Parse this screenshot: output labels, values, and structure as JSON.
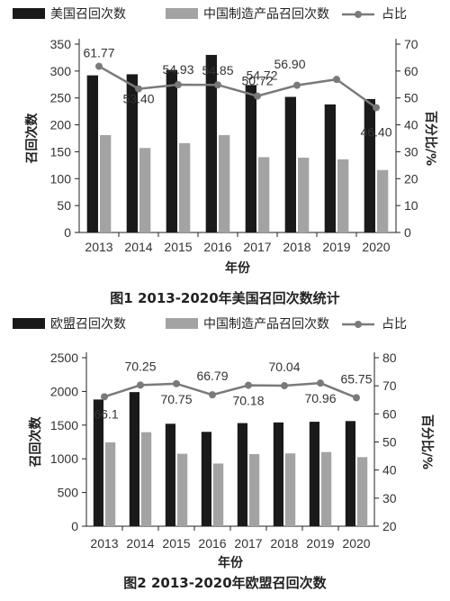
{
  "colors": {
    "bar_us_eu": "#1a1a1a",
    "bar_china": "#a3a3a3",
    "line": "#7a7a7a",
    "axis": "#222222"
  },
  "chart_data": [
    {
      "type": "bar",
      "caption": "图1  2013-2020年美国召回次数统计",
      "categories": [
        "2013",
        "2014",
        "2015",
        "2016",
        "2017",
        "2018",
        "2019",
        "2020"
      ],
      "xlabel": "年份",
      "ylabel": "召回次数",
      "ylim": [
        0,
        350
      ],
      "yticks": [
        "0",
        "50",
        "100",
        "150",
        "200",
        "250",
        "300",
        "350"
      ],
      "y2label": "百分比/%",
      "y2lim": [
        0,
        70
      ],
      "y2ticks": [
        "0",
        "10",
        "20",
        "30",
        "40",
        "50",
        "60",
        "70"
      ],
      "legend": [
        "美国召回次数",
        "中国制造产品召回次数",
        "占比"
      ],
      "series": [
        {
          "name": "美国召回次数",
          "values": [
            292,
            294,
            302,
            330,
            274,
            252,
            238,
            248
          ]
        },
        {
          "name": "中国制造产品召回次数",
          "values": [
            181,
            157,
            166,
            181,
            140,
            139,
            136,
            116
          ]
        },
        {
          "name": "占比",
          "axis": "right",
          "values": [
            61.77,
            53.4,
            54.93,
            54.85,
            50.72,
            54.72,
            56.9,
            46.4
          ],
          "labels": [
            "61.77",
            "53.40",
            "54.93",
            "54.85",
            "50.72",
            "54.72",
            "56.90",
            "46.40"
          ]
        }
      ]
    },
    {
      "type": "bar",
      "caption": "图2  2013-2020年欧盟召回次数",
      "categories": [
        "2013",
        "2014",
        "2015",
        "2016",
        "2017",
        "2018",
        "2019",
        "2020"
      ],
      "xlabel": "年份",
      "ylabel": "召回次数",
      "ylim": [
        0,
        2500
      ],
      "yticks": [
        "0",
        "500",
        "1000",
        "1500",
        "2000",
        "2500"
      ],
      "y2label": "百分比/%",
      "y2lim": [
        20,
        80
      ],
      "y2ticks": [
        "20",
        "30",
        "40",
        "50",
        "60",
        "70",
        "80"
      ],
      "legend": [
        "欧盟召回次数",
        "中国制造产品召回次数",
        "占比"
      ],
      "series": [
        {
          "name": "欧盟召回次数",
          "values": [
            1880,
            1990,
            1520,
            1400,
            1530,
            1540,
            1550,
            1560
          ]
        },
        {
          "name": "中国制造产品召回次数",
          "values": [
            1245,
            1395,
            1075,
            930,
            1070,
            1080,
            1100,
            1025
          ]
        },
        {
          "name": "占比",
          "axis": "right",
          "values": [
            66.1,
            70.25,
            70.75,
            66.79,
            70.18,
            70.04,
            70.96,
            65.75
          ],
          "labels": [
            "66.1",
            "70.25",
            "70.75",
            "66.79",
            "70.18",
            "70.04",
            "70.96",
            "65.75"
          ]
        }
      ]
    }
  ]
}
